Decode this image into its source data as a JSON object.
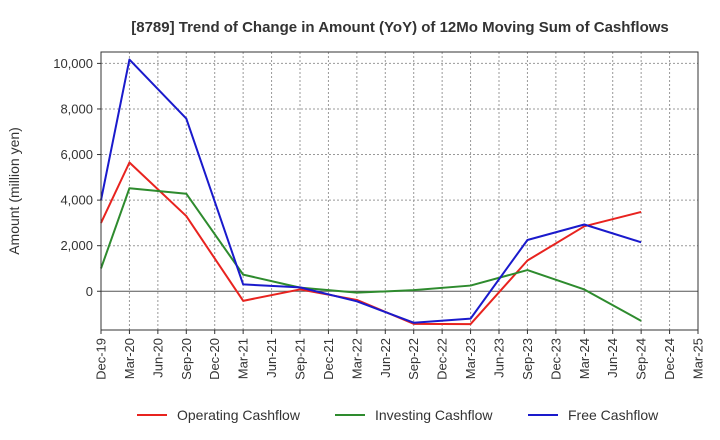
{
  "chart_data": {
    "type": "line",
    "title": "[8789]  Trend of Change in Amount (YoY) of 12Mo Moving Sum of Cashflows",
    "xlabel": "",
    "ylabel": "Amount (million yen)",
    "ylim": [
      -1700,
      10500
    ],
    "yticks": [
      0,
      2000,
      4000,
      6000,
      8000,
      10000
    ],
    "ytick_labels": [
      "0",
      "2,000",
      "4,000",
      "6,000",
      "8,000",
      "10,000"
    ],
    "categories": [
      "Dec-19",
      "Mar-20",
      "Jun-20",
      "Sep-20",
      "Dec-20",
      "Mar-21",
      "Jun-21",
      "Sep-21",
      "Dec-21",
      "Mar-22",
      "Jun-22",
      "Sep-22",
      "Dec-22",
      "Mar-23",
      "Jun-23",
      "Sep-23",
      "Dec-23",
      "Mar-24",
      "Jun-24",
      "Sep-24",
      "Dec-24",
      "Mar-25"
    ],
    "series": [
      {
        "name": "Operating Cashflow",
        "color": "#e8231f",
        "values": [
          3000,
          5650,
          null,
          3300,
          null,
          -420,
          null,
          80,
          null,
          -380,
          null,
          -1430,
          null,
          -1440,
          null,
          1350,
          null,
          2850,
          null,
          3480,
          null,
          null
        ]
      },
      {
        "name": "Investing Cashflow",
        "color": "#2e8b2e",
        "values": [
          1000,
          4520,
          null,
          4280,
          null,
          730,
          null,
          160,
          null,
          -60,
          null,
          50,
          null,
          250,
          null,
          930,
          null,
          80,
          null,
          -1300,
          null,
          null
        ]
      },
      {
        "name": "Free Cashflow",
        "color": "#1a1acc",
        "values": [
          4000,
          10170,
          null,
          7580,
          null,
          300,
          null,
          170,
          null,
          -440,
          null,
          -1380,
          null,
          -1200,
          null,
          2250,
          null,
          2930,
          null,
          2150,
          null,
          null
        ]
      }
    ],
    "grid": true,
    "legend_position": "bottom"
  }
}
